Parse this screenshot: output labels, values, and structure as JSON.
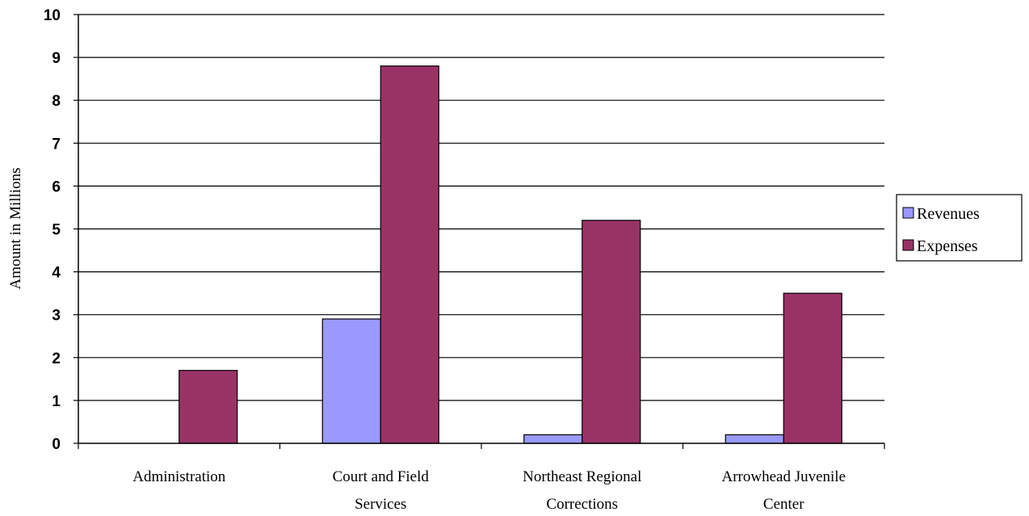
{
  "chart_data": {
    "type": "bar",
    "categories": [
      [
        "Administration"
      ],
      [
        "Court and Field",
        "Services"
      ],
      [
        "Northeast Regional",
        "Corrections"
      ],
      [
        "Arrowhead Juvenile",
        "Center"
      ]
    ],
    "series": [
      {
        "name": "Revenues",
        "values": [
          0,
          2.9,
          0.2,
          0.2
        ],
        "color": "#9999FF"
      },
      {
        "name": "Expenses",
        "values": [
          1.7,
          8.8,
          5.2,
          3.5
        ],
        "color": "#993366"
      }
    ],
    "xlabel": "",
    "ylabel": "Amount in Millions",
    "ylim": [
      0,
      10
    ],
    "yticks": [
      0,
      1,
      2,
      3,
      4,
      5,
      6,
      7,
      8,
      9,
      10
    ],
    "grid": true,
    "legend": "right"
  }
}
